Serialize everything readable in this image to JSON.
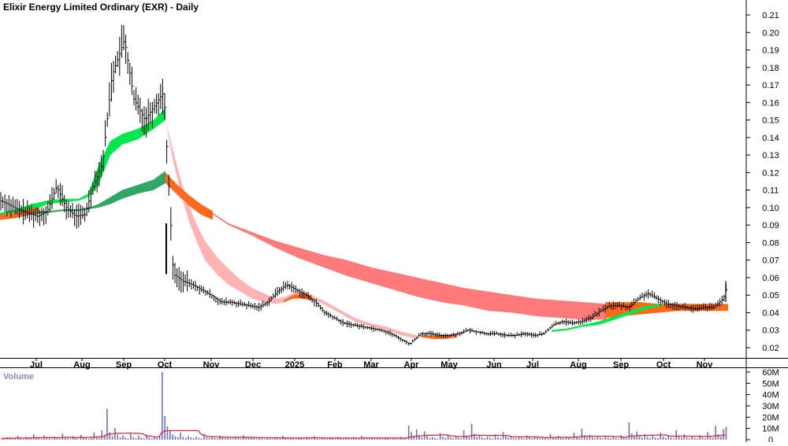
{
  "chart_data": [
    {
      "type": "line",
      "title": "Elixir Energy Limited Ordinary (EXR) - Daily",
      "ylim": [
        0.012,
        0.214
      ],
      "y_ticks": [
        "0.21",
        "0.20",
        "0.19",
        "0.18",
        "0.17",
        "0.16",
        "0.15",
        "0.14",
        "0.13",
        "0.12",
        "0.11",
        "0.10",
        "0.09",
        "0.08",
        "0.07",
        "0.06",
        "0.05",
        "0.04",
        "0.03",
        "0.02"
      ],
      "x_labels": [
        "Jul",
        "Aug",
        "Sep",
        "Oct",
        "Nov",
        "Dec",
        "2025",
        "Feb",
        "Mar",
        "Apr",
        "May",
        "Jun",
        "Jul",
        "Aug",
        "Sep",
        "Oct",
        "Nov"
      ],
      "grid": false,
      "colors": {
        "bull_short": "#00e64d",
        "bull_long": "#2fa865",
        "bear_short": "#ffb3b3",
        "bear_long": "#ff7a7a",
        "cross": "#ff6a1a",
        "bar": "#000000"
      },
      "series": [
        {
          "x": [
            0,
            10,
            22,
            35,
            48,
            60,
            72,
            84,
            96,
            108,
            118,
            130,
            142,
            158,
            170,
            184,
            196,
            208,
            220,
            232,
            244,
            256,
            268,
            280,
            292,
            304,
            316,
            328,
            340,
            352,
            364,
            376,
            388,
            400,
            412,
            424,
            436,
            448,
            460,
            472,
            484,
            496,
            508,
            520,
            534,
            546,
            558,
            570,
            582,
            594,
            606,
            618,
            630,
            642,
            654,
            666,
            678,
            690,
            702,
            714,
            726,
            738,
            750,
            762,
            774,
            786,
            798,
            810,
            822,
            834,
            846,
            858,
            870,
            882,
            894,
            906,
            918,
            924
          ],
          "y": [
            0.104,
            0.102,
            0.099,
            0.097,
            0.095,
            0.098,
            0.112,
            0.1,
            0.095,
            0.096,
            0.112,
            0.125,
            0.175,
            0.196,
            0.162,
            0.15,
            0.158,
            0.166,
            0.062,
            0.058,
            0.056,
            0.053,
            0.05,
            0.046,
            0.046,
            0.045,
            0.044,
            0.043,
            0.046,
            0.052,
            0.056,
            0.053,
            0.05,
            0.046,
            0.04,
            0.037,
            0.034,
            0.033,
            0.032,
            0.031,
            0.03,
            0.028,
            0.025,
            0.022,
            0.028,
            0.028,
            0.027,
            0.027,
            0.028,
            0.03,
            0.029,
            0.028,
            0.028,
            0.027,
            0.027,
            0.028,
            0.027,
            0.028,
            0.033,
            0.035,
            0.034,
            0.035,
            0.037,
            0.041,
            0.044,
            0.044,
            0.043,
            0.048,
            0.051,
            0.048,
            0.045,
            0.044,
            0.043,
            0.042,
            0.043,
            0.043,
            0.048,
            0.057
          ]
        },
        {
          "x": [
            0,
            20,
            40,
            60,
            80,
            100,
            112,
            125,
            140,
            155,
            175,
            195,
            210
          ],
          "y_top": [
            0.097,
            0.099,
            0.102,
            0.104,
            0.105,
            0.105,
            0.108,
            0.124,
            0.138,
            0.142,
            0.145,
            0.15,
            0.157
          ],
          "y_bottom": [
            0.095,
            0.097,
            0.098,
            0.102,
            0.103,
            0.104,
            0.106,
            0.113,
            0.13,
            0.136,
            0.139,
            0.145,
            0.15
          ]
        },
        {
          "x": [
            0,
            20,
            40,
            60,
            80,
            100,
            112,
            125,
            140,
            155,
            175,
            195,
            210
          ],
          "y_top": [
            0.095,
            0.096,
            0.098,
            0.098,
            0.099,
            0.099,
            0.1,
            0.102,
            0.106,
            0.11,
            0.113,
            0.116,
            0.121
          ],
          "y_bottom": [
            0.093,
            0.094,
            0.096,
            0.097,
            0.098,
            0.098,
            0.099,
            0.1,
            0.102,
            0.105,
            0.108,
            0.11,
            0.114
          ]
        },
        {
          "x": [
            210,
            220,
            230,
            240,
            250,
            260,
            275,
            290,
            305,
            320,
            335,
            350,
            362,
            375,
            390,
            410,
            430,
            450,
            470,
            490,
            510,
            530
          ],
          "y_top": [
            0.15,
            0.132,
            0.115,
            0.101,
            0.09,
            0.081,
            0.072,
            0.065,
            0.059,
            0.054,
            0.051,
            0.048,
            0.049,
            0.052,
            0.051,
            0.047,
            0.042,
            0.037,
            0.034,
            0.032,
            0.029,
            0.027
          ],
          "y_bottom": [
            0.15,
            0.126,
            0.107,
            0.092,
            0.08,
            0.07,
            0.062,
            0.056,
            0.052,
            0.048,
            0.046,
            0.045,
            0.046,
            0.049,
            0.049,
            0.045,
            0.04,
            0.035,
            0.032,
            0.03,
            0.027,
            0.025
          ]
        },
        {
          "x": [
            210,
            230,
            250,
            270,
            290,
            320,
            350,
            380,
            410,
            440,
            470,
            500,
            530,
            560,
            590,
            620,
            650,
            680,
            710,
            740,
            770
          ],
          "y_top": [
            0.12,
            0.11,
            0.103,
            0.097,
            0.091,
            0.086,
            0.081,
            0.077,
            0.073,
            0.07,
            0.066,
            0.063,
            0.06,
            0.057,
            0.054,
            0.052,
            0.05,
            0.048,
            0.047,
            0.046,
            0.045
          ],
          "y_bottom": [
            0.114,
            0.105,
            0.099,
            0.096,
            0.09,
            0.084,
            0.077,
            0.071,
            0.066,
            0.061,
            0.057,
            0.053,
            0.049,
            0.046,
            0.044,
            0.041,
            0.04,
            0.038,
            0.037,
            0.036,
            0.036
          ]
        }
      ]
    },
    {
      "type": "bar",
      "title": "Volume",
      "ylim": [
        0,
        62
      ],
      "y_ticks": [
        "60M",
        "50M",
        "40M",
        "30M",
        "20M",
        "10M",
        "0"
      ],
      "values": [
        1.2,
        0.8,
        2.1,
        1.5,
        0.9,
        1.8,
        3.2,
        1.1,
        0.7,
        2.4,
        1.6,
        0.9,
        4.8,
        2.2,
        1.4,
        0.8,
        3.5,
        1.9,
        1.1,
        0.6,
        2.7,
        1.3,
        0.9,
        5.6,
        2.1,
        1.2,
        0.8,
        3.1,
        1.7,
        1.0,
        4.2,
        2.3,
        1.5,
        0.9,
        1.9,
        6.4,
        2.8,
        1.6,
        8.5,
        4.1,
        27.5,
        6.8,
        3.2,
        10.4,
        4.6,
        2.1,
        3.8,
        1.9,
        1.2,
        5.2,
        2.4,
        1.3,
        3.6,
        1.8,
        1.1,
        4.4,
        2.0,
        1.2,
        2.8,
        1.4,
        3.1,
        60.0,
        21.0,
        12.0,
        8.2,
        4.6,
        3.1,
        2.3,
        6.5,
        2.6,
        1.7,
        3.4,
        2.1,
        1.4,
        2.6,
        1.8,
        1.2,
        5.3,
        2.2,
        1.5,
        2.9,
        1.6,
        1.1,
        3.8,
        1.9,
        1.3,
        2.4,
        1.5,
        1.0,
        2.8,
        1.7,
        1.1,
        4.1,
        2.0,
        1.3,
        2.6,
        1.6,
        1.0,
        1.9,
        1.2,
        0.8,
        1.7,
        1.1,
        0.7,
        2.3,
        1.4,
        0.9,
        3.6,
        1.9,
        1.2,
        2.2,
        1.4,
        0.9,
        1.8,
        1.2,
        0.8,
        2.5,
        1.5,
        1.0,
        3.1,
        1.8,
        1.1,
        2.0,
        1.3,
        0.9,
        1.7,
        1.1,
        0.7,
        2.2,
        1.4,
        0.9,
        1.9,
        1.2,
        0.8,
        2.4,
        1.5,
        1.0,
        3.3,
        1.9,
        1.2,
        2.1,
        1.3,
        0.9,
        1.6,
        1.0,
        0.7,
        2.0,
        1.3,
        0.8,
        1.8,
        1.2,
        0.8,
        2.6,
        1.6,
        1.0,
        12.5,
        6.8,
        3.4,
        9.2,
        4.1,
        2.0,
        7.5,
        3.3,
        1.8,
        2.6,
        1.6,
        1.0,
        5.8,
        2.7,
        1.5,
        4.6,
        2.2,
        1.3,
        3.5,
        1.9,
        1.2,
        8.4,
        3.6,
        2.0,
        14.2,
        5.3,
        2.6,
        3.9,
        2.1,
        1.3,
        2.8,
        1.7,
        1.1,
        4.7,
        2.3,
        1.4,
        6.9,
        3.1,
        1.7,
        3.2,
        1.8,
        1.1,
        2.5,
        1.5,
        1.0,
        3.8,
        2.0,
        1.2,
        2.9,
        1.7,
        1.1,
        2.2,
        1.4,
        0.9,
        5.1,
        2.4,
        1.4,
        3.4,
        1.9,
        1.2,
        2.6,
        1.6,
        1.0,
        6.2,
        2.8,
        1.6,
        9.8,
        4.0,
        2.2,
        4.5,
        2.3,
        1.4,
        3.0,
        1.8,
        1.1,
        3.6,
        1.9,
        1.2,
        2.8,
        1.6,
        1.0,
        4.2,
        2.1,
        1.3,
        15.5,
        5.6,
        2.9,
        7.3,
        3.2,
        1.8,
        5.0,
        2.5,
        1.5,
        4.3,
        2.2,
        1.4,
        6.1,
        2.8,
        1.6,
        3.7,
        2.0,
        1.2,
        8.6,
        3.5,
        1.9,
        4.9,
        2.4,
        1.5,
        3.3,
        1.8,
        1.1,
        4.0,
        2.1,
        1.3,
        6.7,
        3.0,
        1.7,
        12.4,
        4.8,
        2.5,
        9.6,
        11.5
      ]
    }
  ]
}
